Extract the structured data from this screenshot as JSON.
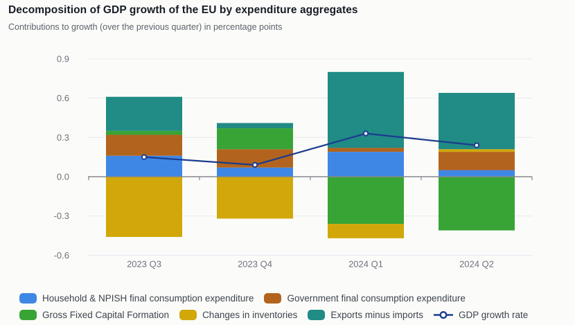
{
  "header": {
    "title": "Decomposition of GDP growth of the EU by expenditure aggregates",
    "subtitle": "Contributions to growth (over the previous quarter) in percentage points"
  },
  "chart_data": {
    "type": "bar",
    "stacked": true,
    "categories": [
      "2023 Q3",
      "2023 Q4",
      "2024 Q1",
      "2024 Q2"
    ],
    "series": [
      {
        "name": "Household & NPISH final consumption expenditure",
        "slug": "household",
        "color": "#3f87e5",
        "values": [
          0.16,
          0.07,
          0.19,
          0.05
        ]
      },
      {
        "name": "Government final consumption expenditure",
        "slug": "government",
        "color": "#b2641e",
        "values": [
          0.16,
          0.14,
          0.03,
          0.14
        ]
      },
      {
        "name": "Gross Fixed Capital Formation",
        "slug": "gfcf",
        "color": "#39a436",
        "values": [
          0.03,
          0.16,
          -0.36,
          -0.41
        ]
      },
      {
        "name": "Changes in inventories",
        "slug": "inventories",
        "color": "#d1a70a",
        "values": [
          -0.46,
          -0.32,
          -0.11,
          0.02
        ]
      },
      {
        "name": "Exports minus imports",
        "slug": "exports",
        "color": "#218b85",
        "values": [
          0.26,
          0.04,
          0.58,
          0.43
        ]
      }
    ],
    "line_series": {
      "name": "GDP growth rate",
      "slug": "gdp-growth-rate",
      "color": "#1b3c8f",
      "values": [
        0.15,
        0.09,
        0.33,
        0.24
      ]
    },
    "ylim": [
      -0.6,
      0.9
    ],
    "yticks": [
      {
        "label": "0.9",
        "value": 0.9
      },
      {
        "label": "0.6",
        "value": 0.6
      },
      {
        "label": "0.3",
        "value": 0.3
      },
      {
        "label": "0.0",
        "value": 0.0
      },
      {
        "label": "-0.3",
        "value": -0.3
      },
      {
        "label": "-0.6",
        "value": -0.6
      }
    ],
    "grid": true,
    "legend_position": "bottom"
  },
  "colors": {
    "background": "#fbfcf9",
    "gridline": "#e6e8f0",
    "zero_axis": "#85888e",
    "axis_text": "#6d727b",
    "legend_text": "#3d434d",
    "title_text": "#161b26",
    "subtitle_text": "#5c626c",
    "marker_fill": "#ffffff"
  }
}
